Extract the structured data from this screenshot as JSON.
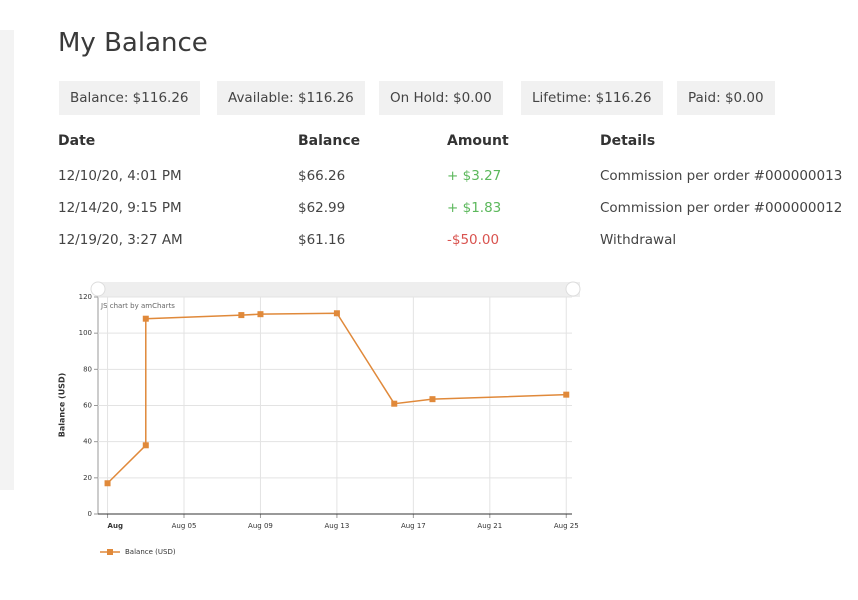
{
  "header": {
    "title": "My Balance"
  },
  "summary": [
    "Balance: $116.26",
    "Available: $116.26",
    "On Hold: $0.00",
    "Lifetime: $116.26",
    "Paid: $0.00"
  ],
  "table": {
    "columns": [
      "Date",
      "Balance",
      "Amount",
      "Details"
    ],
    "rows": [
      [
        "12/10/20, 4:01 PM",
        "$66.26",
        "+ $3.27",
        "Commission per order #000000013"
      ],
      [
        "12/14/20, 9:15 PM",
        "$62.99",
        "+ $1.83",
        "Commission per order #000000012"
      ],
      [
        "12/19/20, 3:27 AM",
        "$61.16",
        "-$50.00",
        "Withdrawal"
      ]
    ]
  },
  "chart_data": {
    "type": "line",
    "credit": "JS chart by amCharts",
    "y_label": "Balance (USD)",
    "x": [
      1,
      3,
      3,
      8,
      9,
      13,
      16,
      18,
      25
    ],
    "series": [
      {
        "name": "Balance (USD)",
        "color": "#e0893a",
        "values": [
          17,
          38,
          108,
          110,
          110.5,
          111,
          61,
          63.5,
          66
        ]
      }
    ],
    "xlim": [
      0.5,
      25.3
    ],
    "xticks": [
      {
        "value": 1,
        "label": "Aug"
      },
      {
        "value": 5,
        "label": "Aug 05"
      },
      {
        "value": 9,
        "label": "Aug 09"
      },
      {
        "value": 13,
        "label": "Aug 13"
      },
      {
        "value": 17,
        "label": "Aug 17"
      },
      {
        "value": 21,
        "label": "Aug 21"
      },
      {
        "value": 25,
        "label": "Aug 25"
      }
    ],
    "ylim": [
      0,
      120
    ],
    "yticks": [
      0,
      20,
      40,
      60,
      80,
      100,
      120
    ],
    "grid": true,
    "legend": "bottom-left"
  }
}
